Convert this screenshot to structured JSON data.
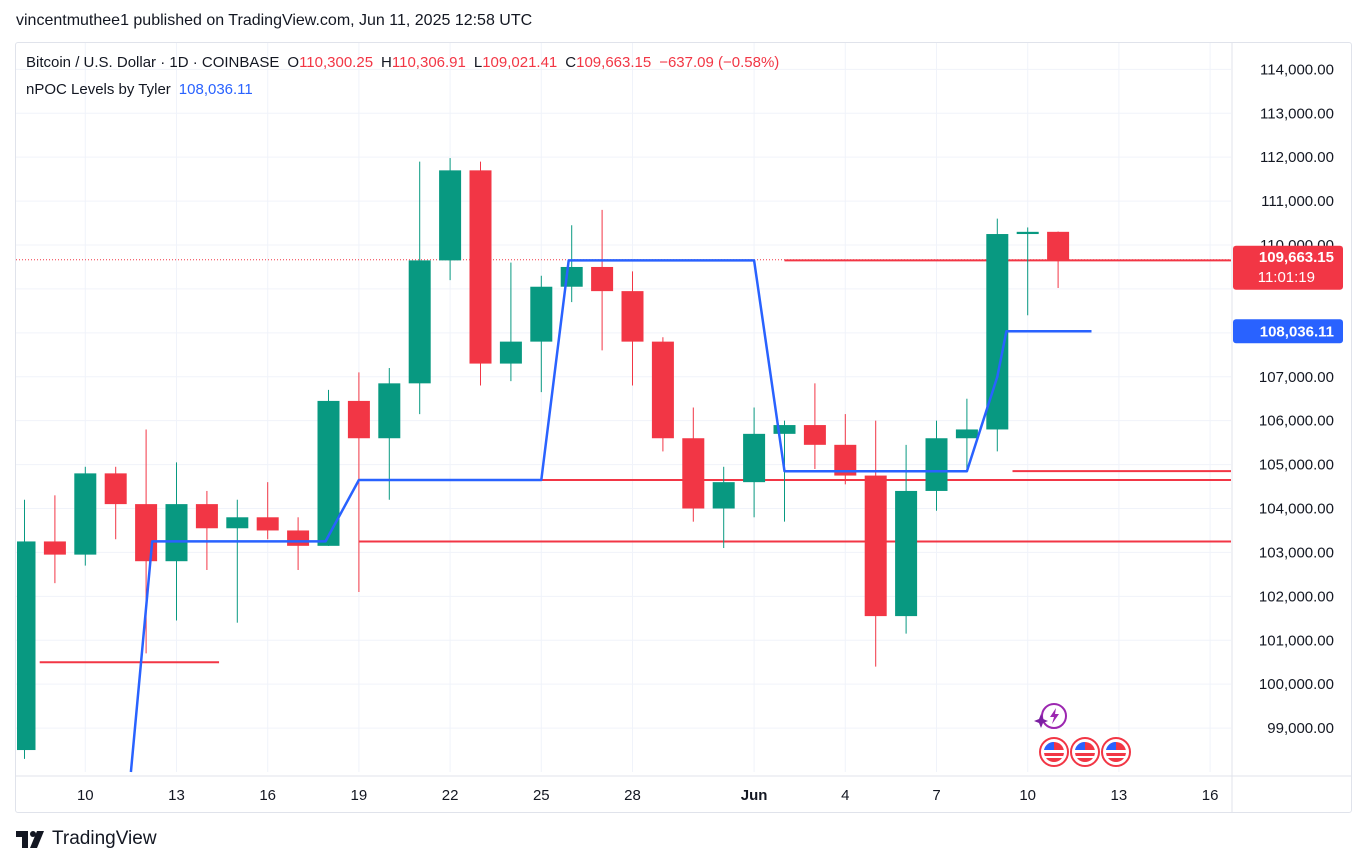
{
  "header": {
    "publish_text": "vincentmuthee1 published on TradingView.com, Jun 11, 2025 12:58 UTC"
  },
  "legend": {
    "symbol": "Bitcoin / U.S. Dollar · 1D · COINBASE",
    "o_label": "O",
    "o_value": "110,300.25",
    "h_label": "H",
    "h_value": "110,306.91",
    "l_label": "L",
    "l_value": "109,021.41",
    "c_label": "C",
    "c_value": "109,663.15",
    "change": "−637.09 (−0.58%)",
    "indicator_name": "nPOC Levels by Tyler",
    "indicator_value": "108,036.11"
  },
  "footer": {
    "brand": "TradingView"
  },
  "colors": {
    "up": "#089981",
    "down": "#f23645",
    "poc": "#2962ff",
    "level": "#f23645",
    "grid": "#f0f3fa",
    "text": "#131722"
  },
  "icons": [
    "tradingview-logo-icon",
    "lightning-event-icon",
    "us-flag-event-icon"
  ],
  "chart_data": {
    "type": "candlestick",
    "symbol": "BTCUSD",
    "timeframe": "1D",
    "ylim": [
      98000,
      114600
    ],
    "y_ticks": [
      99000,
      100000,
      101000,
      102000,
      103000,
      104000,
      105000,
      106000,
      107000,
      108000,
      109000,
      110000,
      111000,
      112000,
      113000,
      114000
    ],
    "y_tick_labels": [
      "99,000.00",
      "100,000.00",
      "101,000.00",
      "102,000.00",
      "103,000.00",
      "104,000.00",
      "105,000.00",
      "106,000.00",
      "107,000.00",
      "",
      "",
      "110,000.00",
      "111,000.00",
      "112,000.00",
      "113,000.00",
      "114,000.00"
    ],
    "x_ticks": [
      {
        "label": "10",
        "day": 10
      },
      {
        "label": "13",
        "day": 13
      },
      {
        "label": "16",
        "day": 16
      },
      {
        "label": "19",
        "day": 19
      },
      {
        "label": "22",
        "day": 22
      },
      {
        "label": "25",
        "day": 25
      },
      {
        "label": "28",
        "day": 28
      },
      {
        "label": "Jun",
        "day": 32
      },
      {
        "label": "4",
        "day": 35
      },
      {
        "label": "7",
        "day": 38
      },
      {
        "label": "10",
        "day": 41
      },
      {
        "label": "13",
        "day": 44
      },
      {
        "label": "16",
        "day": 47
      }
    ],
    "candles": [
      {
        "day": 8,
        "o": 98500,
        "h": 104200,
        "l": 98300,
        "c": 103250
      },
      {
        "day": 9,
        "o": 103250,
        "h": 104300,
        "l": 102300,
        "c": 102950
      },
      {
        "day": 10,
        "o": 102950,
        "h": 104950,
        "l": 102700,
        "c": 104800
      },
      {
        "day": 11,
        "o": 104800,
        "h": 104950,
        "l": 103300,
        "c": 104100
      },
      {
        "day": 12,
        "o": 104100,
        "h": 105800,
        "l": 100700,
        "c": 102800
      },
      {
        "day": 13,
        "o": 102800,
        "h": 105050,
        "l": 101450,
        "c": 104100
      },
      {
        "day": 14,
        "o": 104100,
        "h": 104400,
        "l": 102600,
        "c": 103550
      },
      {
        "day": 15,
        "o": 103550,
        "h": 104200,
        "l": 101400,
        "c": 103800
      },
      {
        "day": 16,
        "o": 103800,
        "h": 104600,
        "l": 103300,
        "c": 103500
      },
      {
        "day": 17,
        "o": 103500,
        "h": 103800,
        "l": 102600,
        "c": 103150
      },
      {
        "day": 18,
        "o": 103150,
        "h": 106700,
        "l": 103150,
        "c": 106450
      },
      {
        "day": 19,
        "o": 106450,
        "h": 107100,
        "l": 102100,
        "c": 105600
      },
      {
        "day": 20,
        "o": 105600,
        "h": 107200,
        "l": 104200,
        "c": 106850
      },
      {
        "day": 21,
        "o": 106850,
        "h": 111900,
        "l": 106150,
        "c": 109650
      },
      {
        "day": 22,
        "o": 109650,
        "h": 111980,
        "l": 109200,
        "c": 111700
      },
      {
        "day": 23,
        "o": 111700,
        "h": 111900,
        "l": 106800,
        "c": 107300
      },
      {
        "day": 24,
        "o": 107300,
        "h": 109600,
        "l": 106900,
        "c": 107800
      },
      {
        "day": 25,
        "o": 107800,
        "h": 109300,
        "l": 106650,
        "c": 109050
      },
      {
        "day": 26,
        "o": 109050,
        "h": 110450,
        "l": 108700,
        "c": 109500
      },
      {
        "day": 27,
        "o": 109500,
        "h": 110800,
        "l": 107600,
        "c": 108950
      },
      {
        "day": 28,
        "o": 108950,
        "h": 109400,
        "l": 106800,
        "c": 107800
      },
      {
        "day": 29,
        "o": 107800,
        "h": 107900,
        "l": 105300,
        "c": 105600
      },
      {
        "day": 30,
        "o": 105600,
        "h": 106300,
        "l": 103700,
        "c": 104000
      },
      {
        "day": 31,
        "o": 104000,
        "h": 104950,
        "l": 103100,
        "c": 104600
      },
      {
        "day": 32,
        "o": 104600,
        "h": 106300,
        "l": 103800,
        "c": 105700
      },
      {
        "day": 33,
        "o": 105700,
        "h": 106000,
        "l": 103700,
        "c": 105900
      },
      {
        "day": 34,
        "o": 105900,
        "h": 106850,
        "l": 104900,
        "c": 105450
      },
      {
        "day": 35,
        "o": 105450,
        "h": 106150,
        "l": 104550,
        "c": 104750
      },
      {
        "day": 36,
        "o": 104750,
        "h": 106000,
        "l": 100400,
        "c": 101550
      },
      {
        "day": 37,
        "o": 101550,
        "h": 105450,
        "l": 101150,
        "c": 104400
      },
      {
        "day": 38,
        "o": 104400,
        "h": 106000,
        "l": 103950,
        "c": 105600
      },
      {
        "day": 39,
        "o": 105600,
        "h": 106500,
        "l": 104900,
        "c": 105800
      },
      {
        "day": 40,
        "o": 105800,
        "h": 110600,
        "l": 105300,
        "c": 110250
      },
      {
        "day": 41,
        "o": 110250,
        "h": 110400,
        "l": 108400,
        "c": 110300
      },
      {
        "day": 42,
        "o": 110300.25,
        "h": 110306.91,
        "l": 109021.41,
        "c": 109663.15
      }
    ],
    "poc_line": [
      {
        "day": 11.5,
        "y": 98000
      },
      {
        "day": 12.2,
        "y": 103250
      },
      {
        "day": 17.9,
        "y": 103250
      },
      {
        "day": 19.0,
        "y": 104650
      },
      {
        "day": 25.0,
        "y": 104650
      },
      {
        "day": 25.9,
        "y": 109650
      },
      {
        "day": 32.0,
        "y": 109650
      },
      {
        "day": 33.0,
        "y": 104850
      },
      {
        "day": 39.0,
        "y": 104850
      },
      {
        "day": 40.0,
        "y": 107000
      },
      {
        "day": 40.3,
        "y": 108036.11
      },
      {
        "day": 43.1,
        "y": 108036.11
      }
    ],
    "levels": [
      {
        "from_day": 8.5,
        "to_day": 14.4,
        "y": 100500
      },
      {
        "from_day": 19.0,
        "to_day": 48.0,
        "y": 103250
      },
      {
        "from_day": 25.0,
        "to_day": 48.0,
        "y": 104650
      },
      {
        "from_day": 33.0,
        "to_day": 48.0,
        "y": 109650
      },
      {
        "from_day": 40.5,
        "to_day": 48.0,
        "y": 104850
      }
    ],
    "price_label": {
      "value": "109,663.15",
      "countdown": "11:01:19",
      "y": 109663.15
    },
    "poc_label": {
      "value": "108,036.11",
      "y": 108036.11
    }
  }
}
